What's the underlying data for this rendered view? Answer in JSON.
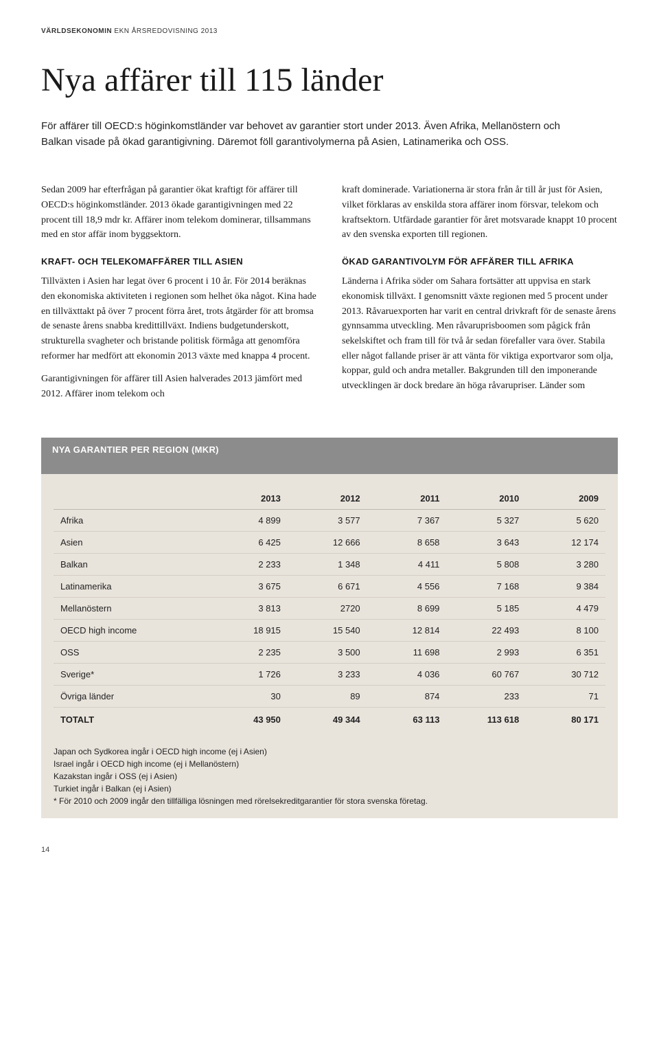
{
  "header": {
    "section_bold": "VÄRLDSEKONOMIN",
    "section_rest": " EKN ÅRSREDOVISNING 2013"
  },
  "title": "Nya affärer till 115 länder",
  "intro": "För affärer till OECD:s höginkomstländer var behovet av garantier stort under 2013. Även Afrika, Mellanöstern och Balkan visade på ökad garantigivning. Däremot föll garantivolymerna på Asien, Latinamerika och OSS.",
  "col_left": {
    "p1": "Sedan 2009 har efterfrågan på garantier ökat kraftigt för affärer till OECD:s höginkomstländer. 2013 ökade garantigivningen med 22 procent till 18,9 mdr kr. Affärer inom telekom dominerar, tillsammans med en stor affär inom byggsektorn.",
    "h1": "KRAFT- OCH TELEKOMAFFÄRER TILL ASIEN",
    "p2": "Tillväxten i Asien har legat över 6 procent i 10 år. För 2014 beräknas den ekonomiska aktiviteten i regionen som helhet öka något. Kina hade en tillväxttakt på över 7 procent förra året, trots åtgärder för att bromsa de senaste årens snabba kredittillväxt. Indiens budgetunderskott, strukturella svagheter och bristande politisk förmåga att genomföra reformer har medfört att ekonomin 2013 växte med knappa 4 procent.",
    "p3": "Garantigivningen för affärer till Asien halverades 2013 jämfört med 2012. Affärer inom telekom och"
  },
  "col_right": {
    "p1": "kraft dominerade. Variationerna är stora från år till år just för Asien, vilket förklaras av enskilda stora affärer inom försvar, telekom och kraftsektorn. Utfärdade garantier för året motsvarade knappt 10 procent av den svenska exporten till regionen.",
    "h1": "ÖKAD GARANTIVOLYM FÖR AFFÄRER TILL AFRIKA",
    "p2": "Länderna i Afrika söder om Sahara fortsätter att uppvisa en stark ekonomisk tillväxt. I genomsnitt växte regionen med 5 procent under 2013. Råvaruexporten har varit en central drivkraft för de senaste årens gynnsamma utveckling. Men råvaruprisboomen som pågick från sekelskiftet och fram till för två år sedan förefaller vara över. Stabila eller något fallande priser är att vänta för viktiga exportvaror som olja, koppar, guld och andra metaller. Bakgrunden till den imponerande utvecklingen är dock bredare än höga råvarupriser. Länder som"
  },
  "table": {
    "title": "NYA GARANTIER PER REGION (MKR)",
    "columns": [
      "",
      "2013",
      "2012",
      "2011",
      "2010",
      "2009"
    ],
    "rows": [
      [
        "Afrika",
        "4 899",
        "3 577",
        "7 367",
        "5 327",
        "5 620"
      ],
      [
        "Asien",
        "6 425",
        "12 666",
        "8 658",
        "3 643",
        "12 174"
      ],
      [
        "Balkan",
        "2 233",
        "1 348",
        "4 411",
        "5 808",
        "3 280"
      ],
      [
        "Latinamerika",
        "3 675",
        "6 671",
        "4 556",
        "7 168",
        "9 384"
      ],
      [
        "Mellanöstern",
        "3 813",
        "2720",
        "8 699",
        "5 185",
        "4 479"
      ],
      [
        "OECD high income",
        "18 915",
        "15 540",
        "12 814",
        "22 493",
        "8 100"
      ],
      [
        "OSS",
        "2 235",
        "3 500",
        "11 698",
        "2 993",
        "6 351"
      ],
      [
        "Sverige*",
        "1 726",
        "3 233",
        "4 036",
        "60 767",
        "30 712"
      ],
      [
        "Övriga länder",
        "30",
        "89",
        "874",
        "233",
        "71"
      ]
    ],
    "total_row": [
      "TOTALT",
      "43 950",
      "49 344",
      "63 113",
      "113 618",
      "80 171"
    ],
    "colwidths": [
      "28%",
      "14.4%",
      "14.4%",
      "14.4%",
      "14.4%",
      "14.4%"
    ],
    "header_bg": "#8c8c8c",
    "body_bg": "#e8e3db",
    "border_color": "#d4cec3"
  },
  "footnotes": [
    "Japan och Sydkorea ingår i OECD high income (ej i Asien)",
    "Israel ingår i OECD high income (ej i Mellanöstern)",
    "Kazakstan ingår i OSS (ej i Asien)",
    "Turkiet ingår i Balkan (ej i Asien)",
    "* För 2010 och 2009 ingår den tillfälliga lösningen med rörelsekreditgarantier för stora svenska företag."
  ],
  "page_number": "14"
}
